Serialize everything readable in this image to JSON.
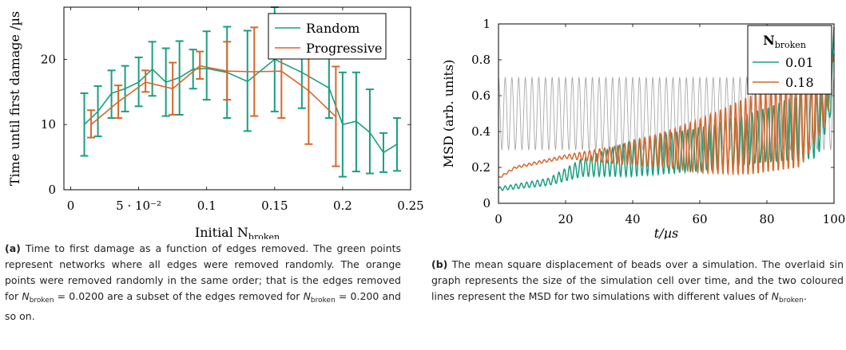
{
  "colors": {
    "green": "#1a9e80",
    "orange": "#d8672b",
    "gray": "#a8a8a8"
  },
  "chart_data": [
    {
      "type": "scatter",
      "ylabel": "Time until first damage /µs",
      "xlabel": "Initial N",
      "xlabel_sub": "broken",
      "xlim": [
        -0.005,
        0.25
      ],
      "ylim": [
        0,
        28
      ],
      "x_ticks": [
        0,
        0.05,
        0.1,
        0.15,
        0.2,
        0.25
      ],
      "x_tick_labels": [
        "0",
        "5 · 10⁻²",
        "0.1",
        "0.15",
        "0.2",
        "0.25"
      ],
      "y_ticks": [
        0,
        10,
        20
      ],
      "y_tick_labels": [
        "0",
        "10",
        "20"
      ],
      "legend_position": "top-right",
      "series": [
        {
          "name": "Random",
          "color_key": "green",
          "points": [
            {
              "x": 0.01,
              "y": 10,
              "lo": 5.2,
              "hi": 14.8
            },
            {
              "x": 0.02,
              "y": 12,
              "lo": 8.2,
              "hi": 15.9
            },
            {
              "x": 0.03,
              "y": 14.8,
              "lo": 11,
              "hi": 18.3
            },
            {
              "x": 0.04,
              "y": 15.5,
              "lo": 12,
              "hi": 19
            },
            {
              "x": 0.05,
              "y": 16.5,
              "lo": 12.8,
              "hi": 20.3
            },
            {
              "x": 0.06,
              "y": 18.5,
              "lo": 14.4,
              "hi": 22.7
            },
            {
              "x": 0.07,
              "y": 16.5,
              "lo": 11.3,
              "hi": 21.7
            },
            {
              "x": 0.08,
              "y": 17.2,
              "lo": 11.5,
              "hi": 22.8
            },
            {
              "x": 0.09,
              "y": 18.5,
              "lo": 15.5,
              "hi": 21.5
            },
            {
              "x": 0.1,
              "y": 18.6,
              "lo": 13.8,
              "hi": 24.3
            },
            {
              "x": 0.115,
              "y": 18,
              "lo": 11,
              "hi": 25
            },
            {
              "x": 0.13,
              "y": 16.6,
              "lo": 9,
              "hi": 24.4
            },
            {
              "x": 0.15,
              "y": 20,
              "lo": 12,
              "hi": 28
            },
            {
              "x": 0.17,
              "y": 18,
              "lo": 12.5,
              "hi": 23.8
            },
            {
              "x": 0.19,
              "y": 15.6,
              "lo": 11,
              "hi": 20.6
            },
            {
              "x": 0.2,
              "y": 10,
              "lo": 2,
              "hi": 18
            },
            {
              "x": 0.21,
              "y": 10.5,
              "lo": 2.8,
              "hi": 18
            },
            {
              "x": 0.22,
              "y": 8.8,
              "lo": 2.5,
              "hi": 15.4
            },
            {
              "x": 0.23,
              "y": 5.7,
              "lo": 2.7,
              "hi": 8.7
            },
            {
              "x": 0.24,
              "y": 7,
              "lo": 2.9,
              "hi": 11
            }
          ]
        },
        {
          "name": "Progressive",
          "color_key": "orange",
          "points": [
            {
              "x": 0.015,
              "y": 10,
              "lo": 8,
              "hi": 12.2
            },
            {
              "x": 0.035,
              "y": 13.5,
              "lo": 11,
              "hi": 16
            },
            {
              "x": 0.055,
              "y": 16.5,
              "lo": 15,
              "hi": 18.3
            },
            {
              "x": 0.075,
              "y": 15.5,
              "lo": 11.5,
              "hi": 19.5
            },
            {
              "x": 0.095,
              "y": 19,
              "lo": 17,
              "hi": 21.2
            },
            {
              "x": 0.115,
              "y": 18.2,
              "lo": 13.8,
              "hi": 22.7
            },
            {
              "x": 0.135,
              "y": 18.1,
              "lo": 11.3,
              "hi": 24.9
            },
            {
              "x": 0.155,
              "y": 18.2,
              "lo": 11,
              "hi": 25.5
            },
            {
              "x": 0.175,
              "y": 15.2,
              "lo": 7,
              "hi": 23.4
            },
            {
              "x": 0.195,
              "y": 11.2,
              "lo": 3.6,
              "hi": 18.9
            }
          ]
        }
      ]
    },
    {
      "type": "line",
      "ylabel": "MSD (arb. units)",
      "xlabel": "t/µs",
      "xlim": [
        0,
        100
      ],
      "ylim": [
        0,
        1
      ],
      "x_ticks": [
        0,
        20,
        40,
        60,
        80,
        100
      ],
      "x_tick_labels": [
        "0",
        "20",
        "40",
        "60",
        "80",
        "100"
      ],
      "y_ticks": [
        0,
        0.2,
        0.4,
        0.6,
        0.8,
        1
      ],
      "y_tick_labels": [
        "0",
        "0.2",
        "0.4",
        "0.6",
        "0.8",
        "1"
      ],
      "legend_position": "top-right",
      "legend_title": "N",
      "legend_title_sub": "broken",
      "cell_size_sine": {
        "color_key": "gray",
        "center": 0.5,
        "amplitude": 0.2,
        "cycles": 50
      },
      "series": [
        {
          "name": "0.01",
          "color_key": "green",
          "trend": [
            [
              0,
              0.08
            ],
            [
              15,
              0.12
            ],
            [
              25,
              0.2
            ],
            [
              40,
              0.25
            ],
            [
              60,
              0.3
            ],
            [
              80,
              0.38
            ],
            [
              95,
              0.45
            ],
            [
              99,
              0.55
            ],
            [
              100,
              0.98
            ]
          ],
          "oscillation": [
            [
              0,
              0.01
            ],
            [
              15,
              0.02
            ],
            [
              25,
              0.05
            ],
            [
              40,
              0.1
            ],
            [
              60,
              0.12
            ],
            [
              80,
              0.15
            ],
            [
              95,
              0.2
            ],
            [
              100,
              0.02
            ]
          ],
          "period": 1.6
        },
        {
          "name": "0.18",
          "color_key": "orange",
          "trend": [
            [
              0,
              0.14
            ],
            [
              5,
              0.2
            ],
            [
              20,
              0.26
            ],
            [
              35,
              0.27
            ],
            [
              50,
              0.3
            ],
            [
              60,
              0.32
            ],
            [
              75,
              0.38
            ],
            [
              90,
              0.45
            ],
            [
              98,
              0.55
            ],
            [
              100,
              0.88
            ]
          ],
          "oscillation": [
            [
              0,
              0.005
            ],
            [
              20,
              0.01
            ],
            [
              35,
              0.05
            ],
            [
              50,
              0.1
            ],
            [
              60,
              0.15
            ],
            [
              75,
              0.22
            ],
            [
              90,
              0.25
            ],
            [
              100,
              0.05
            ]
          ],
          "period": 1.5
        }
      ]
    }
  ],
  "captions": {
    "a_label": "(a)",
    "a_text": " Time to first damage as a function of edges removed. The green points represent networks where all edges were removed randomly. The orange points were removed randomly in the same order; that is the edges removed for ",
    "a_sym1": "N",
    "a_sub1": "broken",
    "a_mid1": " = 0.0200 are a subset of the edges removed for ",
    "a_sym2": "N",
    "a_sub2": "broken",
    "a_end": " = 0.200 and so on.",
    "b_label": "(b)",
    "b_text": " The mean square displacement of beads over a simulation. The overlaid sin graph represents the size of the simulation cell over time, and the two coloured lines represent the MSD for two simulations with different values of ",
    "b_sym": "N",
    "b_sub": "broken",
    "b_end": "."
  }
}
